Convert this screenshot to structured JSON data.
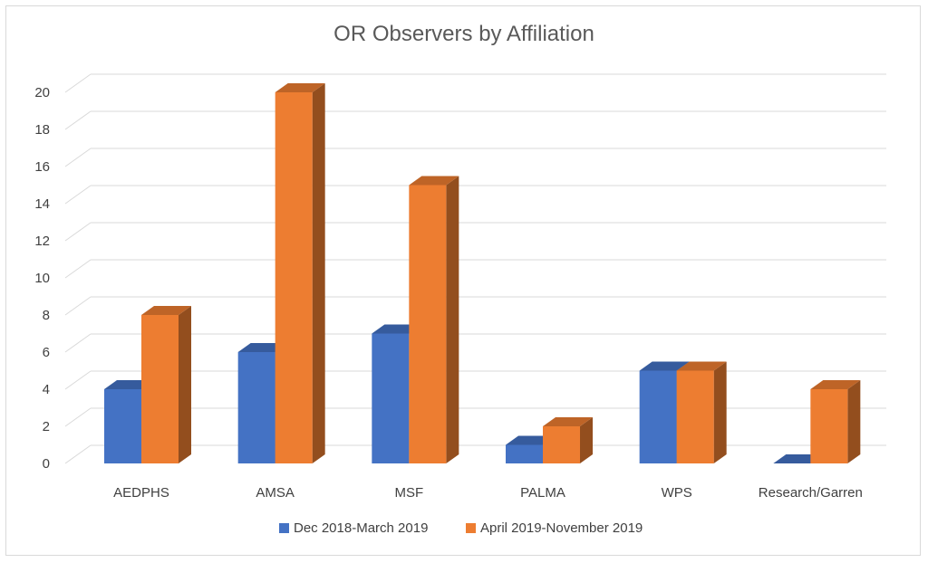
{
  "chart_data": {
    "type": "bar",
    "title": "OR Observers by Affiliation",
    "categories": [
      "AEDPHS",
      "AMSA",
      "MSF",
      "PALMA",
      "WPS",
      "Research/Garren"
    ],
    "series": [
      {
        "name": "Dec 2018-March 2019",
        "values": [
          4,
          6,
          7,
          1,
          5,
          0
        ],
        "color": "#4472c4"
      },
      {
        "name": "April 2019-November 2019",
        "values": [
          8,
          20,
          15,
          2,
          5,
          4
        ],
        "color": "#ed7d31"
      }
    ],
    "y_ticks": [
      "0",
      "2",
      "4",
      "6",
      "8",
      "10",
      "12",
      "14",
      "16",
      "18",
      "20"
    ],
    "ylim": [
      0,
      20
    ],
    "grid": true,
    "legend_position": "bottom",
    "style": "3d-clustered-column"
  }
}
